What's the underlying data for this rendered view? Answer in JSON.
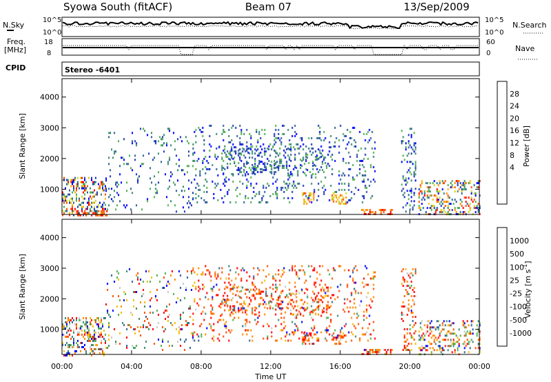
{
  "header": {
    "station": "Syowa South (fitACF)",
    "beam": "Beam 07",
    "date": "13/Sep/2009"
  },
  "nsky_panel": {
    "left_label": "N.Sky",
    "left_ticks": [
      "10^5",
      "10^0"
    ],
    "right_label": "N.Search",
    "right_ticks": [
      "10^5",
      "10^0"
    ]
  },
  "freq_panel": {
    "left_label_top": "Freq.",
    "left_label_bottom": "[MHz]",
    "left_ticks": [
      "18",
      "8"
    ],
    "right_label": "Nave",
    "right_ticks": [
      "60",
      "0"
    ]
  },
  "cpid": {
    "label": "CPID",
    "value": "Stereo -6401"
  },
  "chart_data": [
    {
      "type": "heatmap",
      "name": "power",
      "xlabel": "Time UT",
      "ylabel": "Slant Range [km]",
      "xlim": [
        0,
        24
      ],
      "ylim": [
        180,
        4600
      ],
      "x_ticks": [
        "00:00",
        "04:00",
        "08:00",
        "12:00",
        "16:00",
        "20:00",
        "00:00"
      ],
      "y_ticks": [
        "1000",
        "2000",
        "3000",
        "4000"
      ],
      "y_tick_values": [
        1000,
        2000,
        3000,
        4000
      ],
      "colorbar": {
        "label": "Power [dB]",
        "ticks": [
          "28",
          "24",
          "20",
          "16",
          "12",
          "8",
          "4"
        ],
        "colors": [
          "#0000ff",
          "#1e3cb4",
          "#2e6496",
          "#3c8c6e",
          "#50b050",
          "#c8dc28",
          "#f0c000",
          "#ff8c00",
          "#ff5000",
          "#ff0000"
        ]
      },
      "echo_regions": [
        {
          "t0": 0.0,
          "t1": 2.5,
          "r0": 180,
          "r1": 1400,
          "density": 0.55,
          "level": "mixed"
        },
        {
          "t0": 0.8,
          "t1": 2.6,
          "r0": 180,
          "r1": 320,
          "density": 0.8,
          "level": "high"
        },
        {
          "t0": 2.5,
          "t1": 7.5,
          "r0": 300,
          "r1": 3000,
          "density": 0.12,
          "level": "low"
        },
        {
          "t0": 7.5,
          "t1": 18.0,
          "r0": 600,
          "r1": 3100,
          "density": 0.18,
          "level": "low"
        },
        {
          "t0": 9.0,
          "t1": 15.5,
          "r0": 1500,
          "r1": 2400,
          "density": 0.3,
          "level": "low"
        },
        {
          "t0": 13.8,
          "t1": 14.5,
          "r0": 550,
          "r1": 900,
          "density": 0.7,
          "level": "mid"
        },
        {
          "t0": 15.5,
          "t1": 16.3,
          "r0": 550,
          "r1": 900,
          "density": 0.6,
          "level": "mid"
        },
        {
          "t0": 17.2,
          "t1": 19.0,
          "r0": 180,
          "r1": 360,
          "density": 0.85,
          "level": "high"
        },
        {
          "t0": 19.5,
          "t1": 20.3,
          "r0": 300,
          "r1": 3000,
          "density": 0.35,
          "level": "low"
        },
        {
          "t0": 20.5,
          "t1": 24.0,
          "r0": 180,
          "r1": 1300,
          "density": 0.45,
          "level": "mixed"
        }
      ]
    },
    {
      "type": "heatmap",
      "name": "velocity",
      "xlabel": "Time UT",
      "ylabel": "Slant Range [km]",
      "xlim": [
        0,
        24
      ],
      "ylim": [
        180,
        4600
      ],
      "x_ticks": [
        "00:00",
        "04:00",
        "08:00",
        "12:00",
        "16:00",
        "20:00",
        "00:00"
      ],
      "y_ticks": [
        "1000",
        "2000",
        "3000",
        "4000"
      ],
      "y_tick_values": [
        1000,
        2000,
        3000,
        4000
      ],
      "colorbar": {
        "label": "Velocity [m s^-1]",
        "ticks": [
          "1000",
          "500",
          "100",
          "25",
          "-25",
          "-100",
          "-500",
          "-1000"
        ],
        "colors": [
          "#ff0000",
          "#ff5000",
          "#ff8c00",
          "#f0c000",
          "#c8c8c8",
          "#50b050",
          "#3c8c6e",
          "#2e6496",
          "#0000ff"
        ]
      },
      "echo_regions": [
        {
          "t0": 0.0,
          "t1": 2.5,
          "r0": 180,
          "r1": 1400,
          "density": 0.55,
          "level": "mixed"
        },
        {
          "t0": 2.5,
          "t1": 7.5,
          "r0": 300,
          "r1": 3000,
          "density": 0.12,
          "level": "mixed"
        },
        {
          "t0": 7.5,
          "t1": 18.0,
          "r0": 600,
          "r1": 3100,
          "density": 0.18,
          "level": "neg"
        },
        {
          "t0": 9.0,
          "t1": 15.5,
          "r0": 1500,
          "r1": 2400,
          "density": 0.3,
          "level": "neg"
        },
        {
          "t0": 13.8,
          "t1": 14.5,
          "r0": 550,
          "r1": 900,
          "density": 0.7,
          "level": "neg"
        },
        {
          "t0": 15.5,
          "t1": 16.3,
          "r0": 550,
          "r1": 900,
          "density": 0.6,
          "level": "neg"
        },
        {
          "t0": 17.2,
          "t1": 19.0,
          "r0": 180,
          "r1": 360,
          "density": 0.85,
          "level": "neg"
        },
        {
          "t0": 19.5,
          "t1": 20.3,
          "r0": 300,
          "r1": 3000,
          "density": 0.35,
          "level": "neg"
        },
        {
          "t0": 20.5,
          "t1": 24.0,
          "r0": 180,
          "r1": 1300,
          "density": 0.45,
          "level": "mixed"
        }
      ]
    }
  ]
}
